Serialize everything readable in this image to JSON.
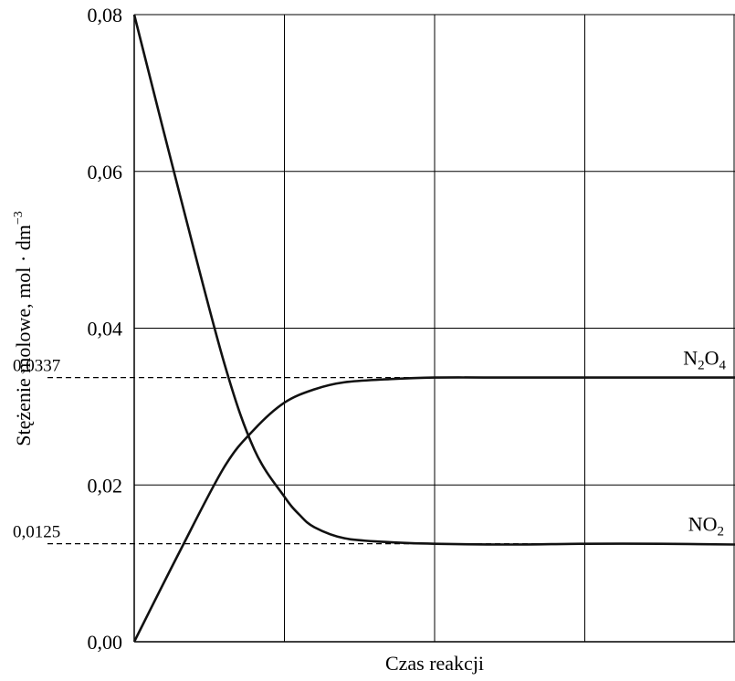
{
  "chart_data": {
    "type": "line",
    "xlabel": "Czas reakcji",
    "ylabel_main": "Stężenie molowe, mol · dm",
    "ylabel_sup": "−3",
    "ylim": [
      0,
      0.08
    ],
    "xlim": [
      0,
      4
    ],
    "y_ticks": [
      {
        "value": 0.0,
        "label": "0,00"
      },
      {
        "value": 0.02,
        "label": "0,02"
      },
      {
        "value": 0.04,
        "label": "0,04"
      },
      {
        "value": 0.06,
        "label": "0,06"
      },
      {
        "value": 0.08,
        "label": "0,08"
      }
    ],
    "x_gridlines": [
      1,
      2,
      3,
      4
    ],
    "grid": true,
    "reference_lines": [
      {
        "value": 0.0337,
        "label": "0,0337"
      },
      {
        "value": 0.0125,
        "label": "0,0125"
      }
    ],
    "series": [
      {
        "name": "N2O4",
        "label_main": "N",
        "label_sub1": "2",
        "label_mid": "O",
        "label_sub2": "4",
        "x": [
          0,
          0.3,
          0.6,
          0.8,
          1.0,
          1.2,
          1.4,
          1.7,
          2.0,
          2.5,
          3.0,
          3.5,
          4.0
        ],
        "values": [
          0.0,
          0.0114,
          0.0223,
          0.0271,
          0.0305,
          0.0322,
          0.0331,
          0.0335,
          0.0337,
          0.0337,
          0.0337,
          0.0337,
          0.0337
        ]
      },
      {
        "name": "NO2",
        "label_main": "NO",
        "label_sub1": "2",
        "x": [
          0,
          0.3,
          0.6,
          0.8,
          1.0,
          1.1,
          1.2,
          1.4,
          1.7,
          2.0,
          2.5,
          3.0,
          3.5,
          4.0
        ],
        "values": [
          0.08,
          0.0573,
          0.0355,
          0.0245,
          0.0185,
          0.0162,
          0.0146,
          0.0132,
          0.0127,
          0.0125,
          0.0124,
          0.0125,
          0.0125,
          0.0124
        ]
      }
    ]
  }
}
